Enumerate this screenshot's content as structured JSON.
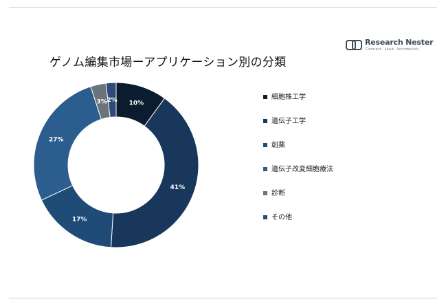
{
  "brand": {
    "name": "Research Nester",
    "tagline": "Connect. Lead. Accomplish"
  },
  "chart_data": {
    "type": "pie",
    "title": "ゲノム編集市場ーアプリケーション別の分類",
    "donut": true,
    "legend_position": "right",
    "categories": [
      "細胞株工学",
      "遺伝子工学",
      "創薬",
      "遺伝子改変細胞療法",
      "診断",
      "その他"
    ],
    "values": [
      10,
      41,
      17,
      27,
      3,
      2
    ],
    "labels": [
      "10%",
      "41%",
      "17%",
      "27%",
      "3%",
      "2%"
    ],
    "colors": [
      "#0b1c2e",
      "#19375b",
      "#1f4b77",
      "#2c5d8f",
      "#6c737b",
      "#2e4a7c"
    ],
    "label_colors": [
      "#ffffff",
      "#ffffff",
      "#ffffff",
      "#ffffff",
      "#ffffff",
      "#ffffff"
    ]
  }
}
